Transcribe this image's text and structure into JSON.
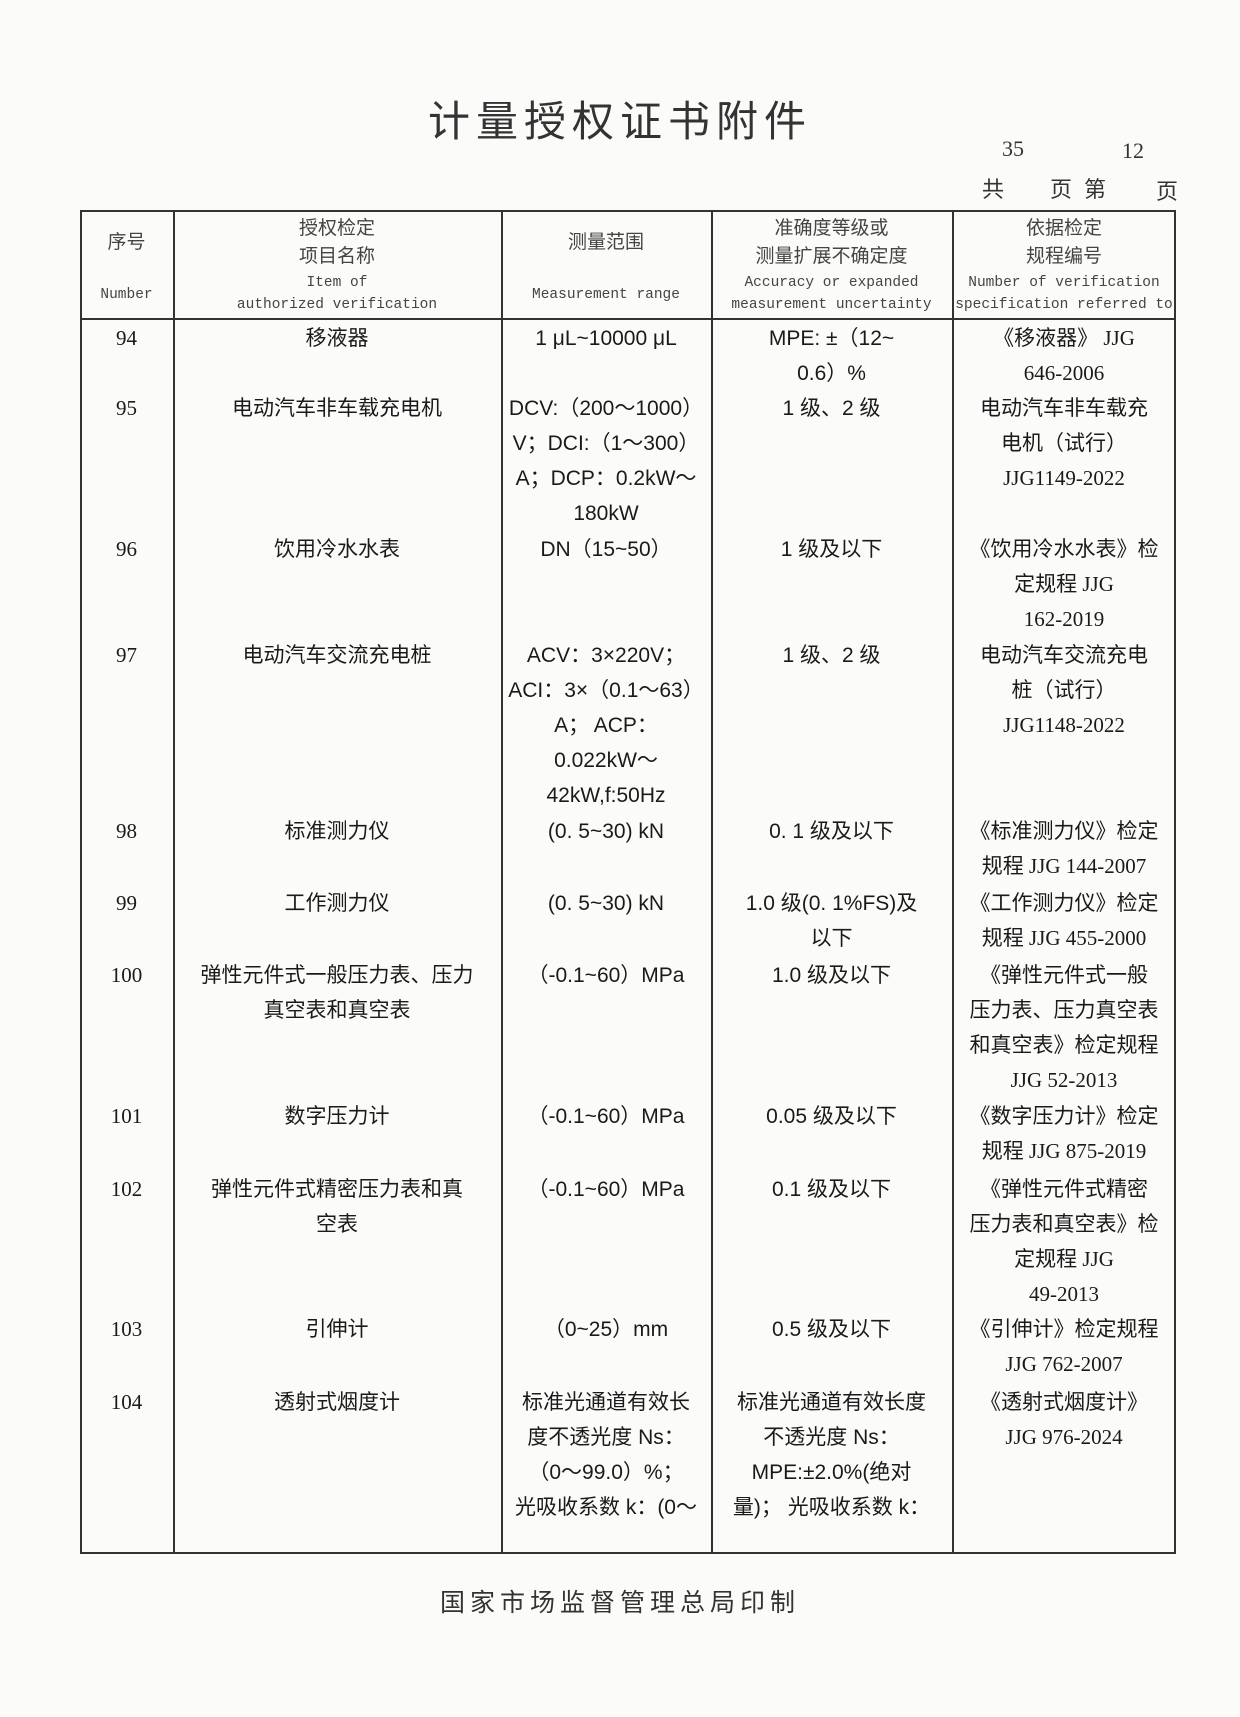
{
  "title": "计量授权证书附件",
  "pagination": {
    "total": "35",
    "current": "12",
    "label_total_prefix": "共",
    "label_total_suffix": "页第",
    "label_page_suffix": "页"
  },
  "columns": [
    {
      "zh": [
        "序号"
      ],
      "en": [
        "Number"
      ]
    },
    {
      "zh": [
        "授权检定",
        "项目名称"
      ],
      "en": [
        "Item of",
        "authorized verification"
      ]
    },
    {
      "zh": [
        "测量范围"
      ],
      "en": [
        "Measurement range"
      ]
    },
    {
      "zh": [
        "准确度等级或",
        "测量扩展不确定度"
      ],
      "en": [
        "Accuracy or expanded",
        "measurement uncertainty"
      ]
    },
    {
      "zh": [
        "依据检定",
        "规程编号"
      ],
      "en": [
        "Number of verification",
        "specification referred to"
      ]
    }
  ],
  "rows": [
    {
      "no": "94",
      "item": [
        "移液器"
      ],
      "range": [
        "1 μL~10000 μL"
      ],
      "accuracy": [
        "MPE: ±（12~",
        "0.6）%"
      ],
      "spec": [
        "《移液器》 JJG",
        "646-2006"
      ]
    },
    {
      "no": "95",
      "item": [
        "电动汽车非车载充电机"
      ],
      "range": [
        "DCV:（200～1000）",
        "V；DCI:（1～300）",
        "A；DCP：0.2kW～",
        "180kW"
      ],
      "accuracy": [
        "1 级、2 级"
      ],
      "spec": [
        "电动汽车非车载充",
        "电机（试行）",
        "JJG1149-2022"
      ]
    },
    {
      "no": "96",
      "item": [
        "饮用冷水水表"
      ],
      "range": [
        "DN（15~50）"
      ],
      "accuracy": [
        "1 级及以下"
      ],
      "spec": [
        "《饮用冷水水表》检",
        "定规程 JJG",
        "162-2019"
      ]
    },
    {
      "no": "97",
      "item": [
        "电动汽车交流充电桩"
      ],
      "range": [
        "ACV：3×220V；",
        "ACI：3×（0.1～63）",
        "A； ACP：",
        "0.022kW～",
        "42kW,f:50Hz"
      ],
      "accuracy": [
        "1 级、2 级"
      ],
      "spec": [
        "电动汽车交流充电",
        "桩（试行）",
        "JJG1148-2022"
      ]
    },
    {
      "no": "98",
      "item": [
        "标准测力仪"
      ],
      "range": [
        "(0. 5~30) kN"
      ],
      "accuracy": [
        "0. 1 级及以下"
      ],
      "spec": [
        "《标准测力仪》检定",
        "规程 JJG 144-2007"
      ]
    },
    {
      "no": "99",
      "item": [
        "工作测力仪"
      ],
      "range": [
        "(0. 5~30) kN"
      ],
      "accuracy": [
        "1.0 级(0. 1%FS)及",
        "以下"
      ],
      "spec": [
        "《工作测力仪》检定",
        "规程 JJG 455-2000"
      ]
    },
    {
      "no": "100",
      "item": [
        "弹性元件式一般压力表、压力",
        "真空表和真空表"
      ],
      "range": [
        "（-0.1~60）MPa"
      ],
      "accuracy": [
        "1.0 级及以下"
      ],
      "spec": [
        "《弹性元件式一般",
        "压力表、压力真空表",
        "和真空表》检定规程",
        "JJG 52-2013"
      ]
    },
    {
      "no": "101",
      "item": [
        "数字压力计"
      ],
      "range": [
        "（-0.1~60）MPa"
      ],
      "accuracy": [
        "0.05 级及以下"
      ],
      "spec": [
        "《数字压力计》检定",
        "规程 JJG 875-2019"
      ]
    },
    {
      "no": "102",
      "item": [
        "弹性元件式精密压力表和真",
        "空表"
      ],
      "range": [
        "（-0.1~60）MPa"
      ],
      "accuracy": [
        "0.1 级及以下"
      ],
      "spec": [
        "《弹性元件式精密",
        "压力表和真空表》检",
        "定规程 JJG",
        "49-2013"
      ]
    },
    {
      "no": "103",
      "item": [
        "引伸计"
      ],
      "range": [
        "（0~25）mm"
      ],
      "accuracy": [
        "0.5 级及以下"
      ],
      "spec": [
        "《引伸计》检定规程",
        "JJG 762-2007"
      ]
    },
    {
      "no": "104",
      "item": [
        "透射式烟度计"
      ],
      "range": [
        "标准光通道有效长",
        "度不透光度 Ns：",
        "（0～99.0）%；",
        "光吸收系数 k：(0～"
      ],
      "accuracy": [
        "标准光通道有效长度",
        "不透光度 Ns：",
        "MPE:±2.0%(绝对",
        "量)； 光吸收系数 k："
      ],
      "spec": [
        "《透射式烟度计》",
        "JJG 976-2024"
      ]
    }
  ],
  "footer": "国家市场监督管理总局印制"
}
